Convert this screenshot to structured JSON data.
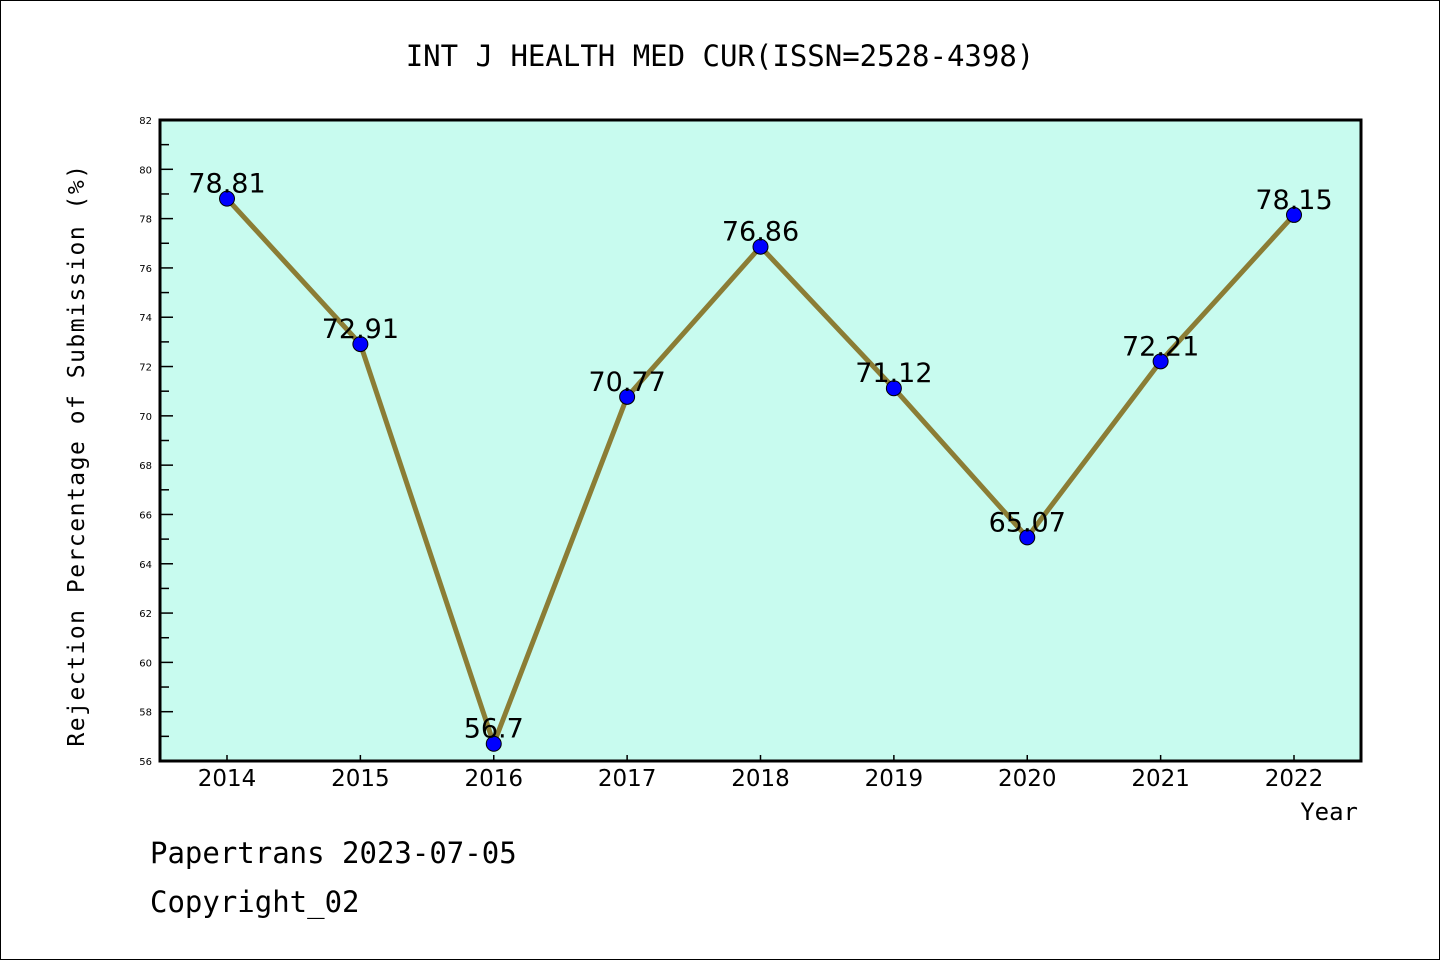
{
  "chart_data": {
    "type": "line",
    "title": "INT J HEALTH MED CUR(ISSN=2528-4398)",
    "xlabel": "Year",
    "ylabel": "Rejection Percentage of Submission (%)",
    "categories": [
      "2014",
      "2015",
      "2016",
      "2017",
      "2018",
      "2019",
      "2020",
      "2021",
      "2022"
    ],
    "values": [
      78.81,
      72.91,
      56.7,
      70.77,
      76.86,
      71.12,
      65.07,
      72.21,
      78.15
    ],
    "data_labels": [
      "78.81",
      "72.91",
      "56.7",
      "70.77",
      "76.86",
      "71.12",
      "65.07",
      "72.21",
      "78.15"
    ],
    "ylim": [
      56,
      82
    ],
    "yticks": [
      "56",
      "58",
      "60",
      "62",
      "64",
      "66",
      "68",
      "70",
      "72",
      "74",
      "76",
      "78",
      "80",
      "82"
    ],
    "grid": false,
    "colors": {
      "background": "#c8fbef",
      "line": "#8b7d35",
      "marker": "#0000ff"
    }
  },
  "footer": {
    "line1": "Papertrans 2023-07-05",
    "line2": "Copyright_02"
  }
}
